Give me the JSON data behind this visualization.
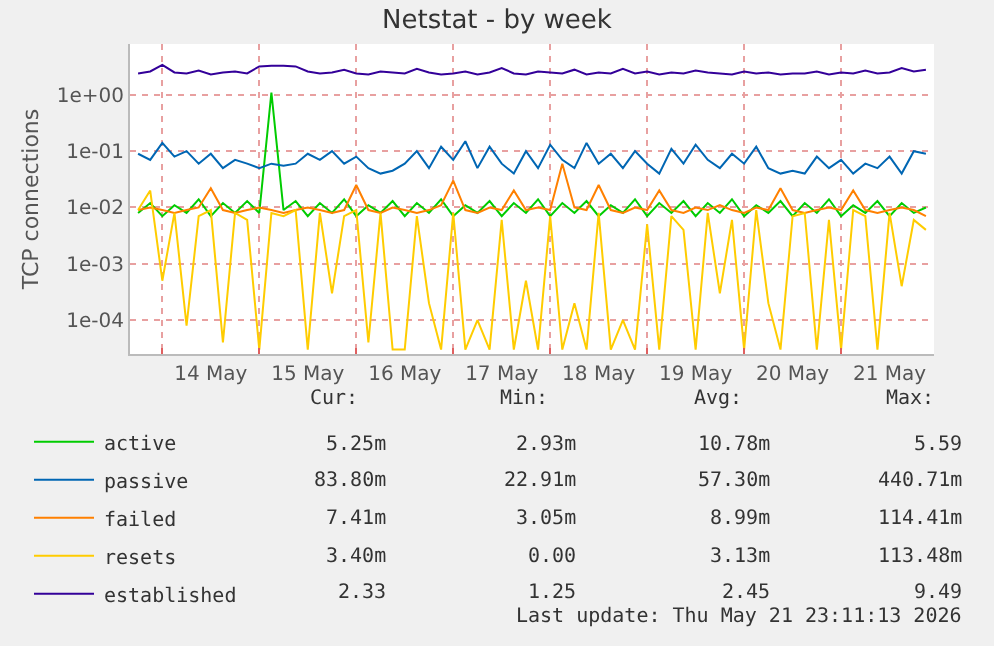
{
  "chart_data": {
    "type": "line",
    "title": "Netstat - by week",
    "ylabel": "TCP connections",
    "log": true,
    "grid": true,
    "legend": "bottom left",
    "marker": "none",
    "line_style": "solid",
    "xlim": [
      "2026-05-13T16:00",
      "2026-05-21T23:00"
    ],
    "xticks": [
      {
        "value": "2026-05-14",
        "label": null
      },
      {
        "value": "2026-05-14T12:00",
        "label": "14 May"
      },
      {
        "value": "2026-05-15",
        "label": null
      },
      {
        "value": "2026-05-15T12:00",
        "label": "15 May"
      },
      {
        "value": "2026-05-16",
        "label": null
      },
      {
        "value": "2026-05-16T12:00",
        "label": "16 May"
      },
      {
        "value": "2026-05-17",
        "label": null
      },
      {
        "value": "2026-05-17T12:00",
        "label": "17 May"
      },
      {
        "value": "2026-05-18",
        "label": null
      },
      {
        "value": "2026-05-18T12:00",
        "label": "18 May"
      },
      {
        "value": "2026-05-19",
        "label": null
      },
      {
        "value": "2026-05-19T12:00",
        "label": "19 May"
      },
      {
        "value": "2026-05-20",
        "label": null
      },
      {
        "value": "2026-05-20T12:00",
        "label": "20 May"
      },
      {
        "value": "2026-05-21",
        "label": null
      },
      {
        "value": "2026-05-21T12:00",
        "label": "21 May"
      }
    ],
    "ylim": [
      2.5e-05,
      8
    ],
    "yticks": [
      {
        "value": 0.0001,
        "label": "1e-04"
      },
      {
        "value": 0.001,
        "label": "1e-03"
      },
      {
        "value": 0.01,
        "label": "1e-02"
      },
      {
        "value": 0.1,
        "label": "1e-01"
      },
      {
        "value": 1,
        "label": "1e+00"
      }
    ],
    "x": [
      "2026-05-13T18:00",
      "2026-05-13T21:00",
      "2026-05-14T00:00",
      "2026-05-14T03:00",
      "2026-05-14T06:00",
      "2026-05-14T09:00",
      "2026-05-14T12:00",
      "2026-05-14T15:00",
      "2026-05-14T18:00",
      "2026-05-14T21:00",
      "2026-05-15T00:00",
      "2026-05-15T03:00",
      "2026-05-15T06:00",
      "2026-05-15T09:00",
      "2026-05-15T12:00",
      "2026-05-15T15:00",
      "2026-05-15T18:00",
      "2026-05-15T21:00",
      "2026-05-16T00:00",
      "2026-05-16T03:00",
      "2026-05-16T06:00",
      "2026-05-16T09:00",
      "2026-05-16T12:00",
      "2026-05-16T15:00",
      "2026-05-16T18:00",
      "2026-05-16T21:00",
      "2026-05-17T00:00",
      "2026-05-17T03:00",
      "2026-05-17T06:00",
      "2026-05-17T09:00",
      "2026-05-17T12:00",
      "2026-05-17T15:00",
      "2026-05-17T18:00",
      "2026-05-17T21:00",
      "2026-05-18T00:00",
      "2026-05-18T03:00",
      "2026-05-18T06:00",
      "2026-05-18T09:00",
      "2026-05-18T12:00",
      "2026-05-18T15:00",
      "2026-05-18T18:00",
      "2026-05-18T21:00",
      "2026-05-19T00:00",
      "2026-05-19T03:00",
      "2026-05-19T06:00",
      "2026-05-19T09:00",
      "2026-05-19T12:00",
      "2026-05-19T15:00",
      "2026-05-19T18:00",
      "2026-05-19T21:00",
      "2026-05-20T00:00",
      "2026-05-20T03:00",
      "2026-05-20T06:00",
      "2026-05-20T09:00",
      "2026-05-20T12:00",
      "2026-05-20T15:00",
      "2026-05-20T18:00",
      "2026-05-20T21:00",
      "2026-05-21T00:00",
      "2026-05-21T03:00",
      "2026-05-21T06:00",
      "2026-05-21T09:00",
      "2026-05-21T12:00",
      "2026-05-21T15:00",
      "2026-05-21T18:00",
      "2026-05-21T21:00"
    ],
    "series": [
      {
        "name": "active",
        "color": "#00cc00",
        "values": [
          0.008,
          0.012,
          0.007,
          0.011,
          0.008,
          0.014,
          0.007,
          0.012,
          0.008,
          0.013,
          0.008,
          1.1,
          0.009,
          0.013,
          0.007,
          0.012,
          0.008,
          0.014,
          0.007,
          0.011,
          0.008,
          0.013,
          0.007,
          0.012,
          0.008,
          0.014,
          0.007,
          0.011,
          0.008,
          0.013,
          0.007,
          0.012,
          0.008,
          0.014,
          0.007,
          0.012,
          0.008,
          0.013,
          0.007,
          0.011,
          0.008,
          0.014,
          0.007,
          0.012,
          0.008,
          0.013,
          0.007,
          0.012,
          0.008,
          0.014,
          0.007,
          0.011,
          0.008,
          0.013,
          0.007,
          0.012,
          0.008,
          0.014,
          0.007,
          0.011,
          0.008,
          0.013,
          0.007,
          0.012,
          0.008,
          0.01
        ]
      },
      {
        "name": "passive",
        "color": "#0066b3",
        "values": [
          0.09,
          0.07,
          0.14,
          0.08,
          0.1,
          0.06,
          0.09,
          0.05,
          0.07,
          0.06,
          0.05,
          0.06,
          0.055,
          0.06,
          0.09,
          0.07,
          0.1,
          0.06,
          0.08,
          0.05,
          0.04,
          0.045,
          0.06,
          0.1,
          0.05,
          0.12,
          0.07,
          0.15,
          0.05,
          0.12,
          0.06,
          0.04,
          0.1,
          0.05,
          0.13,
          0.07,
          0.05,
          0.14,
          0.06,
          0.09,
          0.05,
          0.1,
          0.06,
          0.04,
          0.11,
          0.06,
          0.13,
          0.07,
          0.05,
          0.09,
          0.06,
          0.12,
          0.05,
          0.04,
          0.045,
          0.04,
          0.08,
          0.05,
          0.07,
          0.04,
          0.06,
          0.05,
          0.08,
          0.04,
          0.1,
          0.09
        ]
      },
      {
        "name": "failed",
        "color": "#ff8000",
        "values": [
          0.009,
          0.01,
          0.009,
          0.008,
          0.009,
          0.01,
          0.022,
          0.009,
          0.008,
          0.009,
          0.01,
          0.009,
          0.008,
          0.009,
          0.01,
          0.009,
          0.008,
          0.009,
          0.025,
          0.009,
          0.008,
          0.01,
          0.009,
          0.008,
          0.009,
          0.011,
          0.03,
          0.009,
          0.008,
          0.01,
          0.009,
          0.02,
          0.009,
          0.01,
          0.009,
          0.06,
          0.01,
          0.009,
          0.025,
          0.009,
          0.008,
          0.01,
          0.009,
          0.02,
          0.009,
          0.008,
          0.01,
          0.009,
          0.011,
          0.009,
          0.008,
          0.01,
          0.009,
          0.022,
          0.009,
          0.008,
          0.009,
          0.01,
          0.009,
          0.02,
          0.009,
          0.008,
          0.009,
          0.01,
          0.009,
          0.007
        ]
      },
      {
        "name": "resets",
        "color": "#ffcc00",
        "values": [
          0.009,
          0.02,
          0.0005,
          0.008,
          8e-05,
          0.007,
          0.009,
          4e-05,
          0.008,
          0.006,
          3e-05,
          0.008,
          0.007,
          0.009,
          3e-05,
          0.008,
          0.0003,
          0.007,
          0.009,
          4e-05,
          0.008,
          3e-05,
          3e-05,
          0.007,
          0.0002,
          3e-05,
          0.008,
          3e-05,
          0.0001,
          3e-05,
          0.006,
          3e-05,
          0.0005,
          3e-05,
          0.007,
          3e-05,
          0.0002,
          3e-05,
          0.008,
          3e-05,
          0.0001,
          3e-05,
          0.005,
          3e-05,
          0.007,
          0.004,
          3e-05,
          0.008,
          0.0003,
          0.006,
          3e-05,
          0.009,
          0.0002,
          3e-05,
          0.007,
          0.008,
          3e-05,
          0.006,
          3e-05,
          0.009,
          0.007,
          3e-05,
          0.008,
          0.0004,
          0.006,
          0.004
        ]
      },
      {
        "name": "established",
        "color": "#330099",
        "values": [
          2.4,
          2.6,
          3.4,
          2.5,
          2.4,
          2.7,
          2.3,
          2.5,
          2.6,
          2.4,
          3.2,
          3.3,
          3.3,
          3.2,
          2.6,
          2.4,
          2.5,
          2.8,
          2.4,
          2.3,
          2.6,
          2.5,
          2.4,
          2.9,
          2.5,
          2.3,
          2.4,
          2.6,
          2.3,
          2.5,
          3.0,
          2.4,
          2.3,
          2.6,
          2.5,
          2.4,
          2.8,
          2.3,
          2.5,
          2.4,
          2.9,
          2.4,
          2.6,
          2.3,
          2.5,
          2.4,
          2.7,
          2.5,
          2.4,
          2.3,
          2.6,
          2.4,
          2.5,
          2.3,
          2.4,
          2.4,
          2.6,
          2.3,
          2.5,
          2.4,
          2.7,
          2.4,
          2.5,
          3.0,
          2.6,
          2.8
        ]
      }
    ],
    "annotations": [
      "Cur:",
      "Min:",
      "Avg:",
      "Max:",
      "5.25m",
      "2.93m",
      "10.78m",
      "5.59",
      "83.80m",
      "22.91m",
      "57.30m",
      "440.71m",
      "7.41m",
      "3.05m",
      "8.99m",
      "114.41m",
      "3.40m",
      "0.00",
      "3.13m",
      "113.48m",
      "2.33",
      "1.25",
      "2.45",
      "9.49",
      "Last update: Thu May 21 23:11:13 2026"
    ]
  }
}
